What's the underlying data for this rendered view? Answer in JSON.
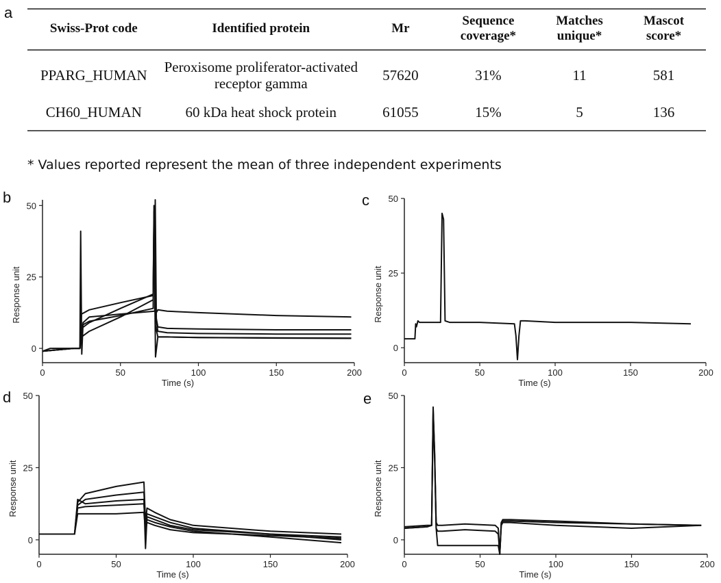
{
  "table": {
    "panel_label": "a",
    "headers": [
      "Swiss-Prot code",
      "Identified protein",
      "Mr",
      "Sequence coverage*",
      "Matches unique*",
      "Mascot score*"
    ],
    "rows": [
      [
        "PPARG_HUMAN",
        "Peroxisome proliferator-activated receptor gamma",
        "57620",
        "31%",
        "11",
        "581"
      ],
      [
        "CH60_HUMAN",
        "60 kDa heat shock protein",
        "61055",
        "15%",
        "5",
        "136"
      ]
    ],
    "footnote": "* Values reported represent the mean of three independent experiments"
  },
  "chart_data": [
    {
      "panel": "b",
      "type": "line",
      "xlabel": "Time (s)",
      "ylabel": "Response unit",
      "xlim": [
        0,
        200
      ],
      "ylim": [
        -5,
        52
      ],
      "xticks": [
        0,
        50,
        100,
        150,
        200
      ],
      "yticks": [
        0,
        25,
        50
      ],
      "series": [
        {
          "x": [
            0,
            5,
            20,
            24,
            24.5,
            25.2,
            26,
            30,
            50,
            72,
            72.3,
            73,
            74,
            80,
            100,
            150,
            198
          ],
          "y": [
            -1,
            0,
            0,
            0,
            41,
            -2,
            9,
            11,
            12,
            13,
            52,
            10,
            6,
            5.5,
            5.2,
            5,
            5
          ]
        },
        {
          "x": [
            0,
            20,
            24,
            25,
            30,
            50,
            71,
            71.5,
            72.5,
            74,
            80,
            100,
            150,
            198
          ],
          "y": [
            -1,
            0,
            0,
            12,
            13.5,
            16,
            18.5,
            50,
            12,
            13.5,
            13,
            12.5,
            11.5,
            11
          ]
        },
        {
          "x": [
            0,
            20,
            24,
            25,
            30,
            50,
            71,
            71.5,
            72.5,
            74,
            80,
            100,
            150,
            198
          ],
          "y": [
            -1,
            0,
            0,
            7,
            9,
            14,
            19,
            48,
            12,
            7.5,
            7,
            6.8,
            6.5,
            6.5
          ]
        },
        {
          "x": [
            0,
            20,
            24,
            25,
            30,
            50,
            71,
            71.5,
            72.5,
            74,
            80,
            100,
            150,
            198
          ],
          "y": [
            -1,
            0,
            0,
            4,
            6,
            11,
            17,
            46,
            -3,
            4,
            4,
            3.8,
            3.7,
            3.6
          ]
        },
        {
          "x": [
            0,
            20,
            24,
            25,
            30,
            50,
            71,
            71.5,
            72.5,
            74,
            80,
            100,
            150,
            198
          ],
          "y": [
            -1,
            0,
            0,
            8,
            9.5,
            11.5,
            14,
            44,
            8,
            4,
            4,
            3.8,
            3.6,
            3.5
          ]
        }
      ]
    },
    {
      "panel": "c",
      "type": "line",
      "xlabel": "Time (s)",
      "ylabel": "Response unit",
      "xlim": [
        0,
        200
      ],
      "ylim": [
        -5,
        50
      ],
      "xticks": [
        0,
        50,
        100,
        150,
        200
      ],
      "yticks": [
        0,
        25,
        50
      ],
      "series": [
        {
          "x": [
            0,
            7,
            7.5,
            8,
            9,
            10,
            24,
            25,
            26,
            27,
            30,
            50,
            73,
            74,
            75,
            76,
            77,
            80,
            100,
            150,
            190
          ],
          "y": [
            3,
            3,
            8,
            7,
            9,
            8.5,
            8.5,
            45,
            43,
            9,
            8.5,
            8.5,
            8,
            4,
            -4,
            4,
            9,
            9,
            8.5,
            8.5,
            8
          ]
        }
      ]
    },
    {
      "panel": "d",
      "type": "line",
      "xlabel": "Time (s)",
      "ylabel": "Response unit",
      "xlim": [
        0,
        200
      ],
      "ylim": [
        -5,
        50
      ],
      "xticks": [
        0,
        50,
        100,
        150,
        200
      ],
      "yticks": [
        0,
        25,
        50
      ],
      "series": [
        {
          "x": [
            0,
            22,
            23,
            25,
            30,
            50,
            68,
            69,
            70,
            75,
            85,
            100,
            150,
            196
          ],
          "y": [
            2,
            2,
            2,
            13,
            16,
            18.5,
            20,
            6,
            11,
            9.5,
            7,
            5,
            3,
            2
          ]
        },
        {
          "x": [
            0,
            22,
            23,
            25,
            30,
            50,
            68,
            69,
            70,
            75,
            85,
            100,
            150,
            196
          ],
          "y": [
            2,
            2,
            2,
            12,
            14,
            15.5,
            16.5,
            6,
            9,
            8,
            6,
            4,
            2,
            1
          ]
        },
        {
          "x": [
            0,
            22,
            23,
            25,
            30,
            50,
            68,
            69,
            70,
            75,
            85,
            100,
            150,
            196
          ],
          "y": [
            2,
            2,
            2,
            14,
            12.5,
            13.5,
            14,
            -3,
            8,
            7,
            5,
            3.5,
            2,
            0
          ]
        },
        {
          "x": [
            0,
            22,
            23,
            25,
            30,
            50,
            68,
            69,
            70,
            75,
            85,
            100,
            150,
            196
          ],
          "y": [
            2,
            2,
            2,
            11,
            11.5,
            12,
            12.5,
            4,
            7,
            6,
            4.5,
            3,
            1,
            -1
          ]
        },
        {
          "x": [
            0,
            22,
            23,
            25,
            30,
            50,
            68,
            69,
            70,
            75,
            85,
            100,
            150,
            196
          ],
          "y": [
            2,
            2,
            2,
            9,
            9,
            9,
            9.5,
            3,
            6,
            5,
            3.5,
            2.5,
            1.5,
            0.5
          ]
        }
      ]
    },
    {
      "panel": "e",
      "type": "line",
      "xlabel": "Time (s)",
      "ylabel": "Response unit",
      "xlim": [
        0,
        200
      ],
      "ylim": [
        -5,
        50
      ],
      "xticks": [
        0,
        50,
        100,
        150,
        200
      ],
      "yticks": [
        0,
        25,
        50
      ],
      "series": [
        {
          "x": [
            0,
            15,
            18,
            19,
            20,
            21,
            22,
            25,
            40,
            60,
            62,
            63,
            64,
            65,
            70,
            100,
            150,
            196
          ],
          "y": [
            4,
            4.5,
            5,
            45,
            30,
            6,
            5,
            5,
            5.5,
            5,
            4,
            -5,
            6,
            6.5,
            6.5,
            6,
            5.5,
            5
          ]
        },
        {
          "x": [
            0,
            15,
            18,
            19,
            20,
            21,
            22,
            25,
            40,
            60,
            62,
            63,
            64,
            65,
            70,
            100,
            150,
            196
          ],
          "y": [
            4.5,
            5,
            5,
            44,
            28,
            4,
            3,
            3,
            3.5,
            3,
            2,
            -5,
            6,
            7,
            7,
            6.5,
            5.5,
            5
          ]
        },
        {
          "x": [
            0,
            15,
            18,
            19,
            20,
            21,
            22,
            25,
            40,
            60,
            62,
            63,
            64,
            65,
            70,
            100,
            150,
            196
          ],
          "y": [
            4,
            4.5,
            5,
            46,
            29,
            4,
            -2,
            -2,
            -2,
            -2,
            -2,
            -5,
            5,
            6,
            6,
            5,
            4,
            5
          ]
        }
      ]
    }
  ]
}
